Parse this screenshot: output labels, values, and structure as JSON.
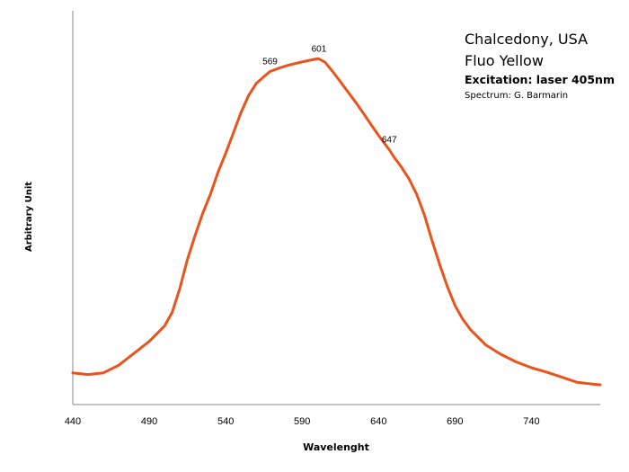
{
  "chart_data": {
    "type": "line",
    "title": "Chalcedony, USA",
    "subtitle": "Fluo Yellow",
    "annotations": [
      "Excitation: laser 405nm",
      "Spectrum: G. Barmarin"
    ],
    "xlabel": "Wavelenght",
    "ylabel": "Arbitrary Unit",
    "xlim": [
      440,
      785
    ],
    "ylim": [
      0,
      100
    ],
    "x_ticks": [
      "440",
      "490",
      "540",
      "590",
      "640",
      "690",
      "740"
    ],
    "grid": false,
    "series": [
      {
        "color": "#E8541C",
        "x": [
          440,
          450,
          460,
          470,
          480,
          490,
          500,
          505,
          510,
          515,
          520,
          525,
          530,
          535,
          540,
          545,
          550,
          555,
          560,
          565,
          569,
          575,
          580,
          585,
          590,
          595,
          600,
          601,
          605,
          610,
          615,
          620,
          625,
          630,
          635,
          640,
          645,
          647,
          650,
          655,
          660,
          665,
          670,
          675,
          680,
          685,
          690,
          695,
          700,
          710,
          720,
          730,
          740,
          750,
          760,
          770,
          780,
          785
        ],
        "y": [
          9.3,
          8.8,
          9.3,
          11.5,
          15.0,
          18.5,
          23.0,
          27.0,
          34.0,
          42.5,
          49.5,
          56.0,
          61.5,
          68.0,
          73.5,
          79.5,
          85.5,
          90.5,
          94.0,
          96.0,
          97.5,
          98.5,
          99.2,
          99.8,
          100.3,
          100.8,
          101.2,
          101.2,
          100.2,
          97.5,
          94.5,
          91.5,
          88.5,
          85.3,
          82.0,
          78.8,
          75.8,
          74.6,
          72.5,
          69.5,
          66.0,
          61.5,
          55.5,
          48.0,
          41.0,
          34.5,
          29.0,
          25.0,
          22.0,
          17.5,
          14.7,
          12.5,
          10.8,
          9.5,
          8.0,
          6.5,
          6.0,
          5.8
        ]
      }
    ],
    "peak_labels": [
      {
        "x": 569,
        "text": "569"
      },
      {
        "x": 601,
        "text": "601"
      },
      {
        "x": 647,
        "text": "647"
      }
    ]
  }
}
